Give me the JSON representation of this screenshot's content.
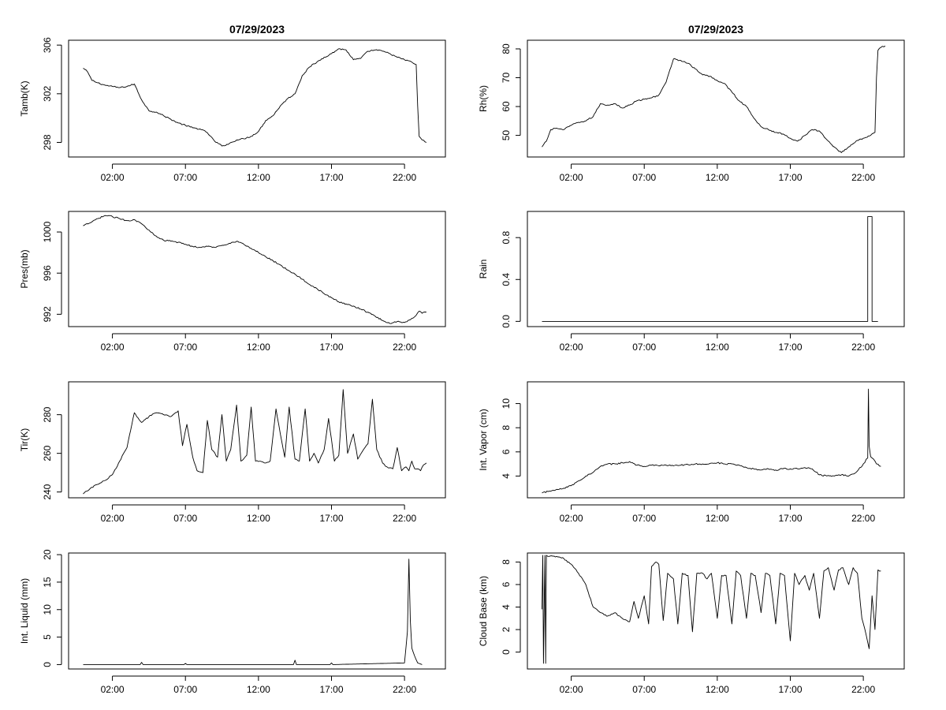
{
  "chart_data": [
    {
      "type": "line",
      "title": "07/29/2023",
      "ylabel": "Tamb(K)",
      "xlabel": "",
      "xlim": [
        0.0,
        25.8
      ],
      "ylim": [
        296.8,
        306.4
      ],
      "xticks": [
        3,
        8,
        13,
        18,
        23
      ],
      "xtick_labels": [
        "02:00",
        "07:00",
        "12:00",
        "17:00",
        "22:00"
      ],
      "yticks": [
        298,
        302,
        306
      ],
      "ytick_labels": [
        "298",
        "302",
        "306"
      ],
      "x": [
        1.0,
        1.3,
        1.6,
        2.0,
        2.5,
        3.0,
        3.5,
        4.0,
        4.5,
        5.0,
        5.5,
        6.0,
        6.5,
        7.0,
        7.5,
        8.0,
        8.5,
        9.0,
        9.5,
        10.0,
        10.5,
        11.0,
        11.5,
        12.0,
        12.5,
        13.0,
        13.5,
        14.0,
        14.5,
        15.0,
        15.5,
        16.0,
        16.5,
        17.0,
        17.5,
        18.0,
        18.5,
        19.0,
        19.5,
        20.0,
        20.5,
        21.0,
        21.5,
        22.0,
        22.5,
        23.0,
        23.5,
        23.8,
        23.9,
        24.0,
        24.2,
        24.5
      ],
      "y": [
        304.1,
        303.8,
        303.1,
        302.9,
        302.7,
        302.6,
        302.5,
        302.6,
        302.8,
        301.5,
        300.6,
        300.5,
        300.2,
        299.9,
        299.6,
        299.4,
        299.2,
        299.1,
        298.8,
        298.1,
        297.7,
        297.9,
        298.2,
        298.3,
        298.5,
        298.9,
        299.8,
        300.2,
        301.0,
        301.6,
        302.0,
        303.5,
        304.2,
        304.6,
        305.0,
        305.3,
        305.7,
        305.6,
        304.8,
        304.9,
        305.5,
        305.6,
        305.5,
        305.3,
        305.0,
        304.8,
        304.6,
        304.4,
        301.0,
        298.5,
        298.2,
        298.0
      ]
    },
    {
      "type": "line",
      "title": "07/29/2023",
      "ylabel": "Rh(%)",
      "xlabel": "",
      "xlim": [
        0.0,
        25.8
      ],
      "ylim": [
        42.5,
        83.0
      ],
      "xticks": [
        3,
        8,
        13,
        18,
        23
      ],
      "xtick_labels": [
        "02:00",
        "07:00",
        "12:00",
        "17:00",
        "22:00"
      ],
      "yticks": [
        50,
        60,
        70,
        80
      ],
      "ytick_labels": [
        "50",
        "60",
        "70",
        "80"
      ],
      "x": [
        1.0,
        1.3,
        1.6,
        2.0,
        2.5,
        3.0,
        3.5,
        4.0,
        4.5,
        5.0,
        5.5,
        6.0,
        6.5,
        7.0,
        7.5,
        8.0,
        8.5,
        9.0,
        9.5,
        10.0,
        10.5,
        11.0,
        11.5,
        12.0,
        12.5,
        13.0,
        13.5,
        14.0,
        14.5,
        15.0,
        15.5,
        16.0,
        16.5,
        17.0,
        17.5,
        18.0,
        18.5,
        19.0,
        19.5,
        20.0,
        20.5,
        21.0,
        21.5,
        22.0,
        22.5,
        23.0,
        23.5,
        23.8,
        23.9,
        24.0,
        24.2,
        24.5
      ],
      "y": [
        46.0,
        48.0,
        52.0,
        52.5,
        52.0,
        53.5,
        54.5,
        55.0,
        56.5,
        61.0,
        60.5,
        61.0,
        59.5,
        60.5,
        62.0,
        62.5,
        63.0,
        64.0,
        68.5,
        76.5,
        76.0,
        75.0,
        73.0,
        71.0,
        70.5,
        69.0,
        68.0,
        65.0,
        62.0,
        60.0,
        56.0,
        53.0,
        52.0,
        51.0,
        50.5,
        49.0,
        48.0,
        50.0,
        52.0,
        51.5,
        48.5,
        46.0,
        44.0,
        46.0,
        48.0,
        49.0,
        50.0,
        51.0,
        70.0,
        79.5,
        80.5,
        81.0
      ]
    },
    {
      "type": "line",
      "title": "",
      "ylabel": "Pres(mb)",
      "xlabel": "",
      "xlim": [
        0.0,
        25.8
      ],
      "ylim": [
        990.8,
        1002.0
      ],
      "xticks": [
        3,
        8,
        13,
        18,
        23
      ],
      "xtick_labels": [
        "02:00",
        "07:00",
        "12:00",
        "17:00",
        "22:00"
      ],
      "yticks": [
        992,
        996,
        1000
      ],
      "ytick_labels": [
        "992",
        "996",
        "1000"
      ],
      "x": [
        1.0,
        1.5,
        2.0,
        2.5,
        3.0,
        3.5,
        4.0,
        4.5,
        5.0,
        5.5,
        6.0,
        6.5,
        7.0,
        7.5,
        8.0,
        8.5,
        9.0,
        9.5,
        10.0,
        10.5,
        11.0,
        11.5,
        12.0,
        12.5,
        13.0,
        13.5,
        14.0,
        14.5,
        15.0,
        15.5,
        16.0,
        16.5,
        17.0,
        17.5,
        18.0,
        18.5,
        19.0,
        19.5,
        20.0,
        20.5,
        21.0,
        21.5,
        22.0,
        22.5,
        23.0,
        23.5,
        23.8,
        24.0,
        24.2,
        24.5
      ],
      "y": [
        1000.6,
        1000.9,
        1001.3,
        1001.6,
        1001.5,
        1001.3,
        1001.1,
        1001.2,
        1000.8,
        1000.2,
        999.6,
        999.2,
        999.1,
        999.0,
        998.8,
        998.6,
        998.5,
        998.6,
        998.5,
        998.7,
        998.9,
        999.1,
        998.8,
        998.4,
        998.0,
        997.6,
        997.2,
        996.8,
        996.3,
        995.9,
        995.4,
        994.9,
        994.5,
        994.0,
        993.6,
        993.2,
        993.0,
        992.8,
        992.5,
        992.2,
        991.8,
        991.4,
        991.1,
        991.3,
        991.2,
        991.6,
        991.9,
        992.3,
        992.1,
        992.2
      ]
    },
    {
      "type": "line",
      "title": "",
      "ylabel": "Rain",
      "xlabel": "",
      "xlim": [
        0.0,
        25.8
      ],
      "ylim": [
        -0.05,
        1.05
      ],
      "xticks": [
        3,
        8,
        13,
        18,
        23
      ],
      "xtick_labels": [
        "02:00",
        "07:00",
        "12:00",
        "17:00",
        "22:00"
      ],
      "yticks": [
        0.0,
        0.4,
        0.8
      ],
      "ytick_labels": [
        "0.0",
        "0.4",
        "0.8"
      ],
      "x": [
        1.0,
        23.3,
        23.3,
        23.6,
        23.6,
        24.0
      ],
      "y": [
        0.0,
        0.0,
        1.0,
        1.0,
        0.0,
        0.0
      ]
    },
    {
      "type": "line",
      "title": "",
      "ylabel": "Tir(K)",
      "xlabel": "",
      "xlim": [
        0.0,
        25.8
      ],
      "ylim": [
        237.0,
        297.0
      ],
      "xticks": [
        3,
        8,
        13,
        18,
        23
      ],
      "xtick_labels": [
        "02:00",
        "07:00",
        "12:00",
        "17:00",
        "22:00"
      ],
      "yticks": [
        240,
        260,
        280
      ],
      "ytick_labels": [
        "240",
        "260",
        "280"
      ],
      "x": [
        1.0,
        1.5,
        2.0,
        2.5,
        3.0,
        3.5,
        4.0,
        4.5,
        5.0,
        5.5,
        6.0,
        6.5,
        7.0,
        7.5,
        7.8,
        8.1,
        8.5,
        8.8,
        9.2,
        9.5,
        9.8,
        10.2,
        10.5,
        10.8,
        11.1,
        11.5,
        11.8,
        12.2,
        12.5,
        12.8,
        13.1,
        13.5,
        13.8,
        14.2,
        14.5,
        14.8,
        15.1,
        15.5,
        15.8,
        16.2,
        16.5,
        16.8,
        17.1,
        17.5,
        17.8,
        18.2,
        18.5,
        18.8,
        19.1,
        19.5,
        19.8,
        20.2,
        20.5,
        20.8,
        21.1,
        21.5,
        21.8,
        22.2,
        22.5,
        22.8,
        23.1,
        23.3,
        23.5,
        23.7,
        23.9,
        24.1,
        24.3,
        24.5
      ],
      "y": [
        239.0,
        242.0,
        244.0,
        246.0,
        249.0,
        256.0,
        263.0,
        281.0,
        276.0,
        279.0,
        281.0,
        280.0,
        279.0,
        282.0,
        264.0,
        275.0,
        258.0,
        251.0,
        250.0,
        277.0,
        262.0,
        258.0,
        280.0,
        256.0,
        262.0,
        285.0,
        256.0,
        259.0,
        284.0,
        256.0,
        256.0,
        255.0,
        256.0,
        283.0,
        270.0,
        258.0,
        284.0,
        257.0,
        256.0,
        283.0,
        256.0,
        260.0,
        255.0,
        262.0,
        278.0,
        256.0,
        259.0,
        293.0,
        260.0,
        270.0,
        257.0,
        262.0,
        265.0,
        288.0,
        262.0,
        255.0,
        253.0,
        252.0,
        263.0,
        251.0,
        253.0,
        251.0,
        256.0,
        252.0,
        252.0,
        251.0,
        254.0,
        255.0
      ]
    },
    {
      "type": "line",
      "title": "",
      "ylabel": "Int. Vapor (cm)",
      "xlabel": "",
      "xlim": [
        0.0,
        25.8
      ],
      "ylim": [
        2.2,
        11.8
      ],
      "xticks": [
        3,
        8,
        13,
        18,
        23
      ],
      "xtick_labels": [
        "02:00",
        "07:00",
        "12:00",
        "17:00",
        "22:00"
      ],
      "yticks": [
        4,
        6,
        8,
        10
      ],
      "ytick_labels": [
        "4",
        "6",
        "8",
        "10"
      ],
      "x": [
        1.0,
        1.5,
        2.0,
        2.5,
        3.0,
        3.5,
        4.0,
        4.5,
        5.0,
        5.5,
        6.0,
        6.5,
        7.0,
        7.5,
        8.0,
        8.5,
        9.0,
        9.5,
        10.0,
        10.5,
        11.0,
        11.5,
        12.0,
        12.5,
        13.0,
        13.5,
        14.0,
        14.5,
        15.0,
        15.5,
        16.0,
        16.5,
        17.0,
        17.5,
        18.0,
        18.5,
        19.0,
        19.5,
        20.0,
        20.5,
        21.0,
        21.5,
        22.0,
        22.5,
        23.0,
        23.3,
        23.35,
        23.4,
        23.5,
        23.7,
        23.9,
        24.2
      ],
      "y": [
        2.6,
        2.75,
        2.9,
        3.0,
        3.2,
        3.6,
        4.0,
        4.3,
        4.8,
        5.0,
        5.0,
        5.1,
        5.2,
        4.9,
        4.8,
        4.9,
        4.85,
        4.9,
        4.85,
        4.9,
        4.95,
        5.0,
        5.0,
        5.05,
        5.1,
        5.0,
        5.0,
        4.9,
        4.7,
        4.6,
        4.5,
        4.6,
        4.5,
        4.6,
        4.6,
        4.6,
        4.7,
        4.6,
        4.1,
        4.0,
        4.0,
        4.1,
        4.0,
        4.3,
        5.0,
        5.5,
        11.2,
        6.5,
        5.6,
        5.4,
        5.0,
        4.8
      ]
    },
    {
      "type": "line",
      "title": "",
      "ylabel": "Int. Liquid (mm)",
      "xlabel": "",
      "xlim": [
        0.0,
        25.8
      ],
      "ylim": [
        -0.8,
        20.3
      ],
      "xticks": [
        3,
        8,
        13,
        18,
        23
      ],
      "xtick_labels": [
        "02:00",
        "07:00",
        "12:00",
        "17:00",
        "22:00"
      ],
      "yticks": [
        0,
        5,
        10,
        15,
        20
      ],
      "ytick_labels": [
        "0",
        "5",
        "10",
        "15",
        "20"
      ],
      "x": [
        1.0,
        4.9,
        5.0,
        5.1,
        7.9,
        8.0,
        8.1,
        15.4,
        15.5,
        15.6,
        17.9,
        18.0,
        18.1,
        23.0,
        23.2,
        23.3,
        23.4,
        23.5,
        23.7,
        23.9,
        24.2
      ],
      "y": [
        0.0,
        0.0,
        0.4,
        0.0,
        0.0,
        0.2,
        0.0,
        0.0,
        0.8,
        0.0,
        0.0,
        0.3,
        0.0,
        0.3,
        6.0,
        19.2,
        8.0,
        3.0,
        1.5,
        0.3,
        0.0
      ]
    },
    {
      "type": "line",
      "title": "",
      "ylabel": "Cloud Base (km)",
      "xlabel": "",
      "xlim": [
        0.0,
        25.8
      ],
      "ylim": [
        -1.5,
        8.8
      ],
      "xticks": [
        3,
        8,
        13,
        18,
        23
      ],
      "xtick_labels": [
        "02:00",
        "07:00",
        "12:00",
        "17:00",
        "22:00"
      ],
      "yticks": [
        0,
        2,
        4,
        6,
        8
      ],
      "ytick_labels": [
        "0",
        "2",
        "4",
        "6",
        "8"
      ],
      "x": [
        1.0,
        1.05,
        1.1,
        1.2,
        1.25,
        1.3,
        1.4,
        1.5,
        2.0,
        2.5,
        3.0,
        3.5,
        4.0,
        4.5,
        5.0,
        5.5,
        6.0,
        6.5,
        7.0,
        7.3,
        7.6,
        8.0,
        8.3,
        8.5,
        8.8,
        9.0,
        9.3,
        9.6,
        10.0,
        10.3,
        10.6,
        11.0,
        11.3,
        11.6,
        12.0,
        12.3,
        12.6,
        13.0,
        13.3,
        13.6,
        14.0,
        14.3,
        14.6,
        15.0,
        15.3,
        15.6,
        16.0,
        16.3,
        16.6,
        17.0,
        17.3,
        17.6,
        18.0,
        18.3,
        18.6,
        19.0,
        19.3,
        19.6,
        20.0,
        20.3,
        20.6,
        21.0,
        21.3,
        21.6,
        22.0,
        22.3,
        22.6,
        22.9,
        23.2,
        23.4,
        23.6,
        23.8,
        24.0,
        24.2
      ],
      "y": [
        3.8,
        8.6,
        -1.0,
        8.6,
        -1.0,
        8.6,
        8.5,
        8.5,
        8.5,
        8.3,
        7.8,
        7.0,
        6.0,
        4.0,
        3.5,
        3.2,
        3.5,
        3.0,
        2.7,
        4.5,
        3.0,
        5.0,
        2.5,
        7.6,
        8.0,
        7.8,
        2.8,
        7.0,
        6.5,
        2.5,
        7.0,
        6.8,
        1.8,
        7.0,
        7.0,
        6.5,
        7.0,
        3.0,
        6.8,
        6.8,
        2.5,
        7.2,
        6.8,
        3.0,
        7.0,
        6.8,
        3.5,
        7.0,
        6.8,
        2.5,
        7.0,
        6.8,
        1.0,
        7.0,
        6.0,
        6.8,
        5.5,
        7.0,
        3.0,
        7.2,
        7.5,
        5.5,
        7.3,
        7.5,
        6.0,
        7.5,
        7.0,
        3.0,
        1.5,
        0.3,
        5.0,
        2.0,
        7.3,
        7.2
      ]
    }
  ]
}
